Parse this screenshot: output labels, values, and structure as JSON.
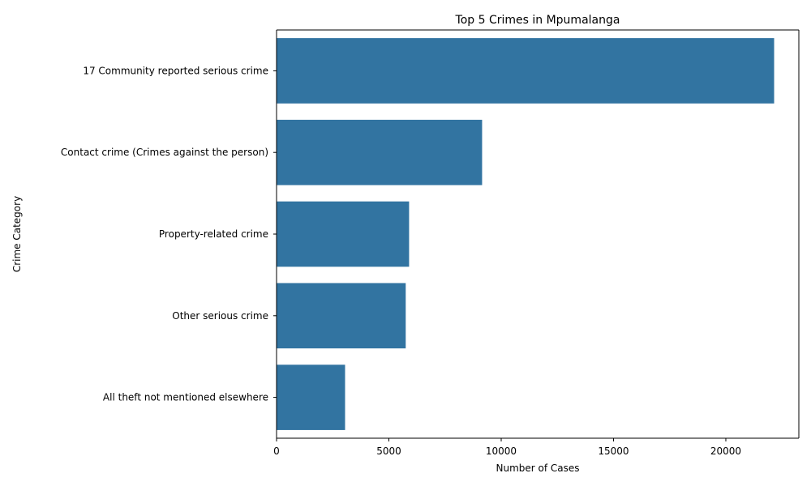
{
  "chart_data": {
    "type": "bar",
    "orientation": "horizontal",
    "title": "Top 5 Crimes in Mpumalanga",
    "xlabel": "Number of Cases",
    "ylabel": "Crime Category",
    "categories": [
      "17 Community reported serious crime",
      "Contact crime (Crimes against the person)",
      "Property-related crime",
      "Other serious crime",
      "All theft not mentioned elsewhere"
    ],
    "values": [
      22150,
      9150,
      5900,
      5750,
      3050
    ],
    "xlim": [
      0,
      23250
    ],
    "xticks": [
      0,
      5000,
      10000,
      15000,
      20000
    ],
    "xtick_labels": [
      "0",
      "5000",
      "10000",
      "15000",
      "20000"
    ],
    "bar_color": "#3274a1",
    "grid": false,
    "legend": "none"
  }
}
